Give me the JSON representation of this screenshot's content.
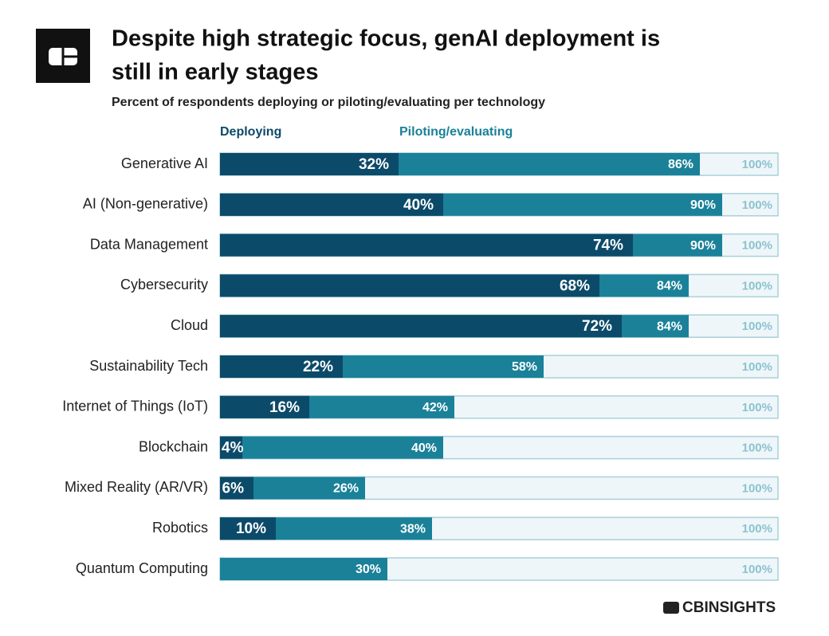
{
  "chart_data": {
    "type": "bar",
    "orientation": "horizontal",
    "title": [
      "Despite high strategic focus, genAI deployment is",
      "still in early stages"
    ],
    "subtitle": "Percent of respondents deploying or piloting/evaluating per technology",
    "brand": "CBINSIGHTS",
    "categories": [
      "Generative AI",
      "AI (Non-generative)",
      "Data Management",
      "Cybersecurity",
      "Cloud",
      "Sustainability Tech",
      "Internet of Things (IoT)",
      "Blockchain",
      "Mixed Reality (AR/VR)",
      "Robotics",
      "Quantum Computing"
    ],
    "xlim": [
      0,
      100
    ],
    "total_values": [
      100,
      100,
      100,
      100,
      100,
      100,
      100,
      100,
      100,
      100,
      100
    ],
    "total_value_labels": [
      "100%",
      "100%",
      "100%",
      "100%",
      "100%",
      "100%",
      "100%",
      "100%",
      "100%",
      "100%",
      "100%"
    ],
    "total_color": "#eef6f9",
    "series": [
      {
        "name": "Piloting/evaluating",
        "color": "#1a8199",
        "values": [
          86,
          90,
          90,
          84,
          84,
          58,
          42,
          40,
          26,
          38,
          30
        ],
        "value_labels": [
          "86%",
          "90%",
          "90%",
          "84%",
          "84%",
          "58%",
          "42%",
          "40%",
          "26%",
          "38%",
          "30%"
        ]
      },
      {
        "name": "Deploying",
        "color": "#0c4a69",
        "values": [
          32,
          40,
          74,
          68,
          72,
          22,
          16,
          4,
          6,
          10,
          0
        ],
        "value_labels": [
          "32%",
          "40%",
          "74%",
          "68%",
          "72%",
          "22%",
          "16%",
          "4%",
          "6%",
          "10%",
          null
        ]
      }
    ]
  }
}
